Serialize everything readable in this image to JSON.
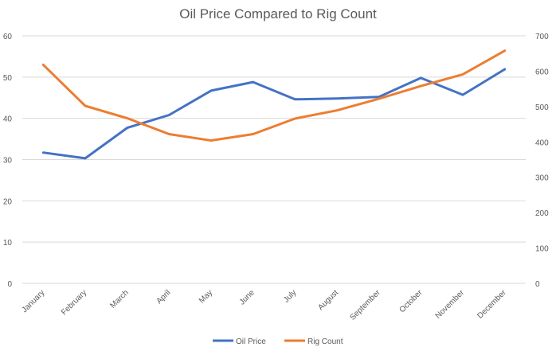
{
  "chart_data": {
    "type": "line",
    "title": "Oil Price Compared to Rig Count",
    "categories": [
      "January",
      "February",
      "March",
      "April",
      "May",
      "June",
      "July",
      "August",
      "September",
      "October",
      "November",
      "December"
    ],
    "series": [
      {
        "name": "Oil Price",
        "axis": "left",
        "color": "#4472c4",
        "values": [
          31.7,
          30.3,
          37.7,
          40.8,
          46.7,
          48.8,
          44.6,
          44.8,
          45.2,
          49.8,
          45.7,
          51.9
        ]
      },
      {
        "name": "Rig Count",
        "axis": "right",
        "color": "#ed7d31",
        "values": [
          618,
          502,
          467,
          422,
          404,
          422,
          466,
          489,
          522,
          558,
          591,
          658
        ]
      }
    ],
    "y_left": {
      "min": 0,
      "max": 60,
      "ticks": [
        "0",
        "10",
        "20",
        "30",
        "40",
        "50",
        "60"
      ]
    },
    "y_right": {
      "min": 0,
      "max": 700,
      "ticks": [
        "0",
        "100",
        "200",
        "300",
        "400",
        "500",
        "600",
        "700"
      ]
    },
    "xlabel": "",
    "ylabel": "",
    "y2label": "",
    "grid": true,
    "legend": "bottom"
  }
}
